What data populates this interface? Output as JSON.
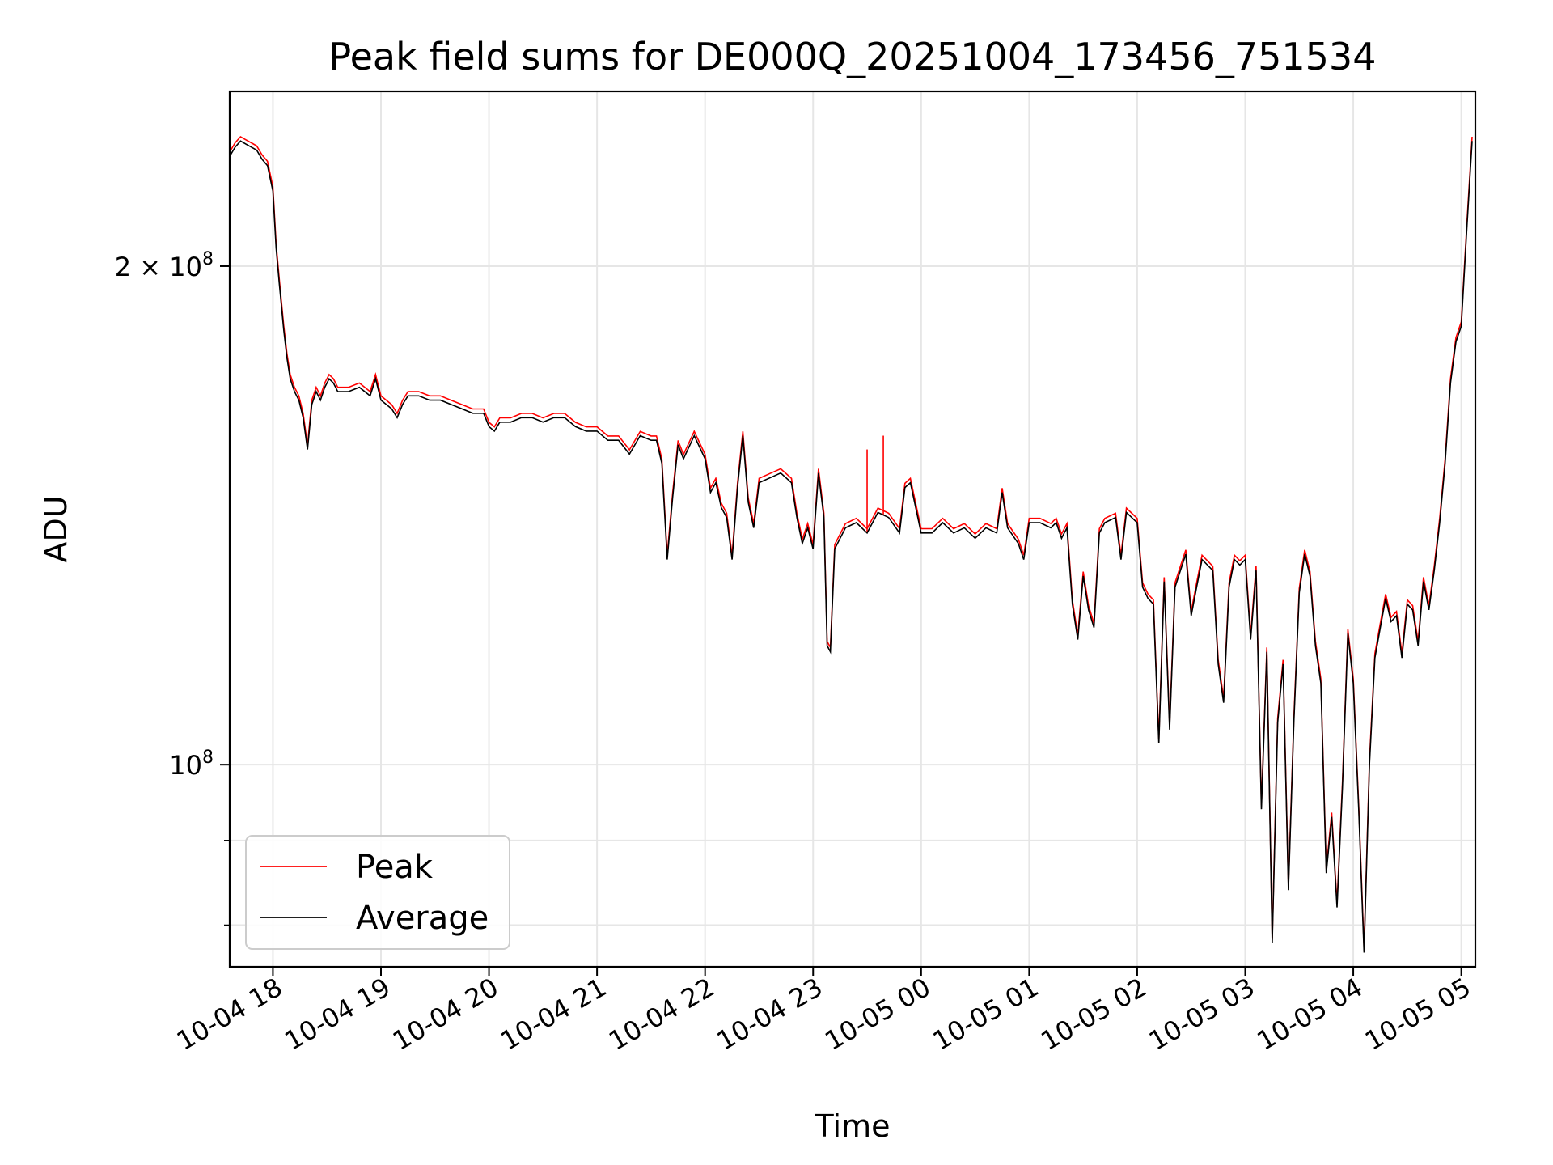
{
  "chart_data": {
    "type": "line",
    "title": "Peak field sums for DE000Q_20251004_173456_751534",
    "xlabel": "Time",
    "ylabel": "ADU",
    "yscale": "log",
    "xlim_hours": [
      -0.4,
      11.13
    ],
    "ylim": [
      75500000,
      255000000
    ],
    "grid": true,
    "legend_position": "lower-left",
    "x_ticks": [
      {
        "t": 0,
        "label": "10-04 18"
      },
      {
        "t": 1,
        "label": "10-04 19"
      },
      {
        "t": 2,
        "label": "10-04 20"
      },
      {
        "t": 3,
        "label": "10-04 21"
      },
      {
        "t": 4,
        "label": "10-04 22"
      },
      {
        "t": 5,
        "label": "10-04 23"
      },
      {
        "t": 6,
        "label": "10-05 00"
      },
      {
        "t": 7,
        "label": "10-05 01"
      },
      {
        "t": 8,
        "label": "10-05 02"
      },
      {
        "t": 9,
        "label": "10-05 03"
      },
      {
        "t": 10,
        "label": "10-05 04"
      },
      {
        "t": 11,
        "label": "10-05 05"
      }
    ],
    "y_major_ticks": [
      {
        "value": 100000000,
        "base": "10",
        "exp": "8"
      },
      {
        "value": 200000000,
        "base": "2 × 10",
        "exp": "8"
      }
    ],
    "y_minor_ticks": [
      80000000,
      90000000
    ],
    "legend": [
      "Peak",
      "Average"
    ],
    "series_units": "ADU (millions), time in hours after 2025-10-04 18:00",
    "series": [
      {
        "name": "Average",
        "color": "#000000",
        "points": [
          [
            -0.4,
            233
          ],
          [
            -0.35,
            236
          ],
          [
            -0.3,
            238
          ],
          [
            -0.25,
            237
          ],
          [
            -0.2,
            236
          ],
          [
            -0.15,
            235
          ],
          [
            -0.1,
            232
          ],
          [
            -0.05,
            230
          ],
          [
            0.0,
            222
          ],
          [
            0.03,
            205
          ],
          [
            0.06,
            195
          ],
          [
            0.1,
            183
          ],
          [
            0.13,
            176
          ],
          [
            0.16,
            171
          ],
          [
            0.2,
            168
          ],
          [
            0.24,
            166
          ],
          [
            0.28,
            162
          ],
          [
            0.32,
            155
          ],
          [
            0.36,
            165
          ],
          [
            0.4,
            168
          ],
          [
            0.44,
            166
          ],
          [
            0.48,
            169
          ],
          [
            0.52,
            171
          ],
          [
            0.56,
            170
          ],
          [
            0.6,
            168
          ],
          [
            0.7,
            168
          ],
          [
            0.8,
            169
          ],
          [
            0.9,
            167
          ],
          [
            0.95,
            171
          ],
          [
            1.0,
            166
          ],
          [
            1.05,
            165
          ],
          [
            1.1,
            164
          ],
          [
            1.15,
            162
          ],
          [
            1.2,
            165
          ],
          [
            1.25,
            167
          ],
          [
            1.35,
            167
          ],
          [
            1.45,
            166
          ],
          [
            1.55,
            166
          ],
          [
            1.65,
            165
          ],
          [
            1.75,
            164
          ],
          [
            1.85,
            163
          ],
          [
            1.95,
            163
          ],
          [
            2.0,
            160
          ],
          [
            2.05,
            159
          ],
          [
            2.1,
            161
          ],
          [
            2.2,
            161
          ],
          [
            2.3,
            162
          ],
          [
            2.4,
            162
          ],
          [
            2.5,
            161
          ],
          [
            2.6,
            162
          ],
          [
            2.7,
            162
          ],
          [
            2.8,
            160
          ],
          [
            2.9,
            159
          ],
          [
            3.0,
            159
          ],
          [
            3.1,
            157
          ],
          [
            3.2,
            157
          ],
          [
            3.3,
            154
          ],
          [
            3.4,
            158
          ],
          [
            3.5,
            157
          ],
          [
            3.55,
            157
          ],
          [
            3.6,
            152
          ],
          [
            3.65,
            133
          ],
          [
            3.7,
            145
          ],
          [
            3.75,
            156
          ],
          [
            3.8,
            153
          ],
          [
            3.9,
            158
          ],
          [
            4.0,
            153
          ],
          [
            4.05,
            146
          ],
          [
            4.1,
            148
          ],
          [
            4.15,
            143
          ],
          [
            4.2,
            141
          ],
          [
            4.25,
            133
          ],
          [
            4.3,
            147
          ],
          [
            4.35,
            158
          ],
          [
            4.4,
            144
          ],
          [
            4.45,
            139
          ],
          [
            4.5,
            148
          ],
          [
            4.6,
            149
          ],
          [
            4.7,
            150
          ],
          [
            4.8,
            148
          ],
          [
            4.85,
            141
          ],
          [
            4.9,
            136
          ],
          [
            4.95,
            139
          ],
          [
            5.0,
            135
          ],
          [
            5.05,
            150
          ],
          [
            5.1,
            141
          ],
          [
            5.13,
            118
          ],
          [
            5.16,
            117
          ],
          [
            5.2,
            135
          ],
          [
            5.3,
            139
          ],
          [
            5.4,
            140
          ],
          [
            5.5,
            138
          ],
          [
            5.6,
            142
          ],
          [
            5.7,
            141
          ],
          [
            5.8,
            138
          ],
          [
            5.85,
            147
          ],
          [
            5.9,
            148
          ],
          [
            6.0,
            138
          ],
          [
            6.1,
            138
          ],
          [
            6.2,
            140
          ],
          [
            6.3,
            138
          ],
          [
            6.4,
            139
          ],
          [
            6.5,
            137
          ],
          [
            6.6,
            139
          ],
          [
            6.7,
            138
          ],
          [
            6.75,
            146
          ],
          [
            6.8,
            139
          ],
          [
            6.9,
            136
          ],
          [
            6.95,
            133
          ],
          [
            7.0,
            140
          ],
          [
            7.1,
            140
          ],
          [
            7.2,
            139
          ],
          [
            7.25,
            140
          ],
          [
            7.3,
            137
          ],
          [
            7.35,
            139
          ],
          [
            7.4,
            125
          ],
          [
            7.45,
            119
          ],
          [
            7.5,
            130
          ],
          [
            7.55,
            124
          ],
          [
            7.6,
            121
          ],
          [
            7.65,
            138
          ],
          [
            7.7,
            140
          ],
          [
            7.8,
            141
          ],
          [
            7.85,
            133
          ],
          [
            7.9,
            142
          ],
          [
            8.0,
            140
          ],
          [
            8.05,
            128
          ],
          [
            8.1,
            126
          ],
          [
            8.15,
            125
          ],
          [
            8.2,
            103
          ],
          [
            8.25,
            129
          ],
          [
            8.3,
            105
          ],
          [
            8.35,
            128
          ],
          [
            8.4,
            131
          ],
          [
            8.45,
            134
          ],
          [
            8.5,
            123
          ],
          [
            8.55,
            128
          ],
          [
            8.6,
            133
          ],
          [
            8.7,
            131
          ],
          [
            8.75,
            115
          ],
          [
            8.8,
            109
          ],
          [
            8.85,
            128
          ],
          [
            8.9,
            133
          ],
          [
            8.95,
            132
          ],
          [
            9.0,
            133
          ],
          [
            9.05,
            119
          ],
          [
            9.1,
            131
          ],
          [
            9.15,
            94
          ],
          [
            9.2,
            117
          ],
          [
            9.25,
            78
          ],
          [
            9.3,
            106
          ],
          [
            9.35,
            115
          ],
          [
            9.4,
            84
          ],
          [
            9.45,
            106
          ],
          [
            9.5,
            127
          ],
          [
            9.55,
            134
          ],
          [
            9.6,
            130
          ],
          [
            9.65,
            118
          ],
          [
            9.7,
            112
          ],
          [
            9.75,
            86
          ],
          [
            9.8,
            93
          ],
          [
            9.85,
            82
          ],
          [
            9.9,
            97
          ],
          [
            9.95,
            120
          ],
          [
            10.0,
            112
          ],
          [
            10.05,
            94
          ],
          [
            10.1,
            77
          ],
          [
            10.15,
            100
          ],
          [
            10.2,
            116
          ],
          [
            10.25,
            121
          ],
          [
            10.3,
            126
          ],
          [
            10.35,
            122
          ],
          [
            10.4,
            123
          ],
          [
            10.45,
            116
          ],
          [
            10.5,
            125
          ],
          [
            10.55,
            124
          ],
          [
            10.6,
            118
          ],
          [
            10.65,
            129
          ],
          [
            10.7,
            124
          ],
          [
            10.75,
            131
          ],
          [
            10.8,
            140
          ],
          [
            10.85,
            152
          ],
          [
            10.9,
            170
          ],
          [
            10.95,
            180
          ],
          [
            11.0,
            184
          ],
          [
            11.05,
            210
          ],
          [
            11.1,
            238
          ]
        ]
      },
      {
        "name": "Peak",
        "color": "#ff0000",
        "spikes": [
          [
            5.5,
            155
          ],
          [
            5.65,
            158
          ]
        ],
        "note": "Peak tracks Average closely; red visible at spikes and minor offsets"
      }
    ]
  }
}
